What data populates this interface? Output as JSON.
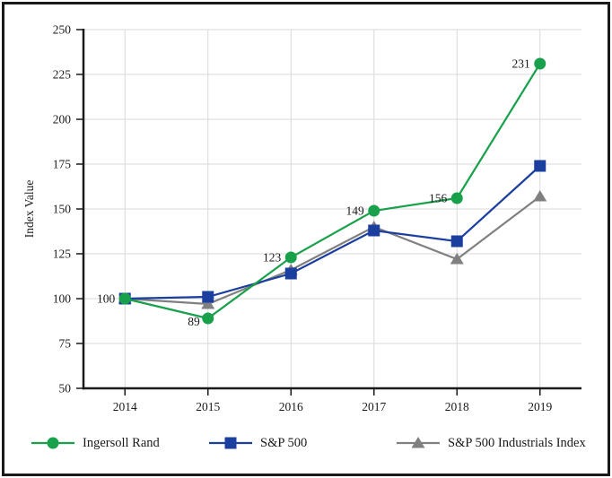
{
  "chart_data": {
    "type": "line",
    "title": "",
    "x": [
      "2014",
      "2015",
      "2016",
      "2017",
      "2018",
      "2019"
    ],
    "series": [
      {
        "name": "Ingersoll Rand",
        "marker": "circle",
        "color": "#18A04A",
        "values": [
          100,
          89,
          123,
          149,
          156,
          231
        ],
        "point_labels": [
          "100",
          "89",
          "123",
          "149",
          "156",
          "231"
        ]
      },
      {
        "name": "S&P 500",
        "marker": "square",
        "color": "#1B3F9F",
        "values": [
          100,
          101,
          114,
          138,
          132,
          174
        ],
        "point_labels": []
      },
      {
        "name": "S&P 500 Industrials Index",
        "marker": "triangle",
        "color": "#808080",
        "values": [
          100,
          97,
          116,
          140,
          122,
          157
        ],
        "point_labels": []
      }
    ],
    "xlabel": "",
    "ylabel": "Index Value",
    "ylim": [
      50,
      250
    ],
    "yticks": [
      250,
      225,
      200,
      175,
      150,
      125,
      100,
      75,
      50
    ],
    "grid": true,
    "legend_position": "bottom",
    "colors": {
      "grid": "#D9D9D9",
      "axis": "#1a1a1a",
      "background": "#FFFFFF",
      "frame_border": "#1a1a1a",
      "label_text": "#1a1a1a"
    }
  }
}
